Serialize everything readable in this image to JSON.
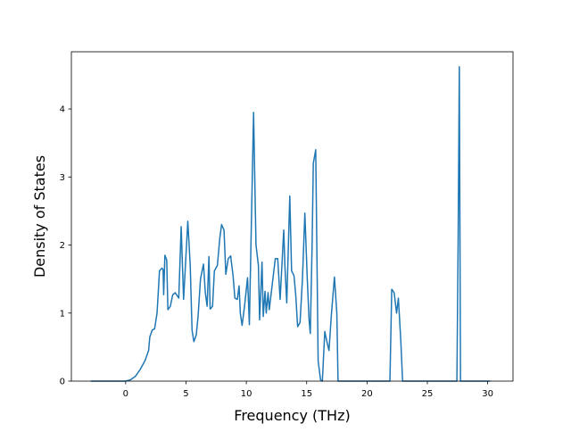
{
  "chart_data": {
    "type": "line",
    "xlabel": "Frequency (THz)",
    "ylabel": "Density of States",
    "color": "#1f77b4",
    "xlim": [
      -4.5,
      32.1
    ],
    "ylim": [
      0,
      4.84
    ],
    "xticks": [
      0,
      5,
      10,
      15,
      20,
      25,
      30
    ],
    "yticks": [
      0,
      1,
      2,
      3,
      4
    ],
    "x": [
      -2.9,
      0,
      0.4,
      0.8,
      1.2,
      1.6,
      1.9,
      2.0,
      2.2,
      2.4,
      2.6,
      2.7,
      2.8,
      3.0,
      3.1,
      3.15,
      3.25,
      3.4,
      3.5,
      3.7,
      3.9,
      4.1,
      4.4,
      4.6,
      4.8,
      5.15,
      5.35,
      5.5,
      5.65,
      5.85,
      6.0,
      6.2,
      6.45,
      6.6,
      6.75,
      6.9,
      7.0,
      7.2,
      7.35,
      7.6,
      7.8,
      7.95,
      8.15,
      8.3,
      8.5,
      8.7,
      8.9,
      9.05,
      9.25,
      9.4,
      9.5,
      9.65,
      9.85,
      10.1,
      10.25,
      10.45,
      10.6,
      10.8,
      11.0,
      11.1,
      11.3,
      11.4,
      11.55,
      11.65,
      11.8,
      11.9,
      12.2,
      12.4,
      12.6,
      12.8,
      13.1,
      13.2,
      13.35,
      13.6,
      13.75,
      13.95,
      14.1,
      14.25,
      14.45,
      14.65,
      14.85,
      15.05,
      15.2,
      15.3,
      15.45,
      15.55,
      15.75,
      15.95,
      16.15,
      16.3,
      16.5,
      16.65,
      16.85,
      17.05,
      17.3,
      17.5,
      17.6,
      21.9,
      22.05,
      22.25,
      22.45,
      22.6,
      22.8,
      22.95,
      27.45,
      27.55,
      27.65,
      27.75,
      30.2
    ],
    "values": [
      0,
      0,
      0.02,
      0.07,
      0.17,
      0.3,
      0.45,
      0.65,
      0.75,
      0.77,
      1.0,
      1.3,
      1.62,
      1.66,
      1.64,
      1.27,
      1.85,
      1.78,
      1.05,
      1.1,
      1.27,
      1.3,
      1.22,
      2.27,
      1.2,
      2.35,
      1.7,
      0.75,
      0.58,
      0.68,
      0.95,
      1.5,
      1.72,
      1.3,
      1.1,
      1.83,
      1.06,
      1.1,
      1.62,
      1.7,
      2.1,
      2.3,
      2.22,
      1.57,
      1.8,
      1.84,
      1.55,
      1.22,
      1.2,
      1.4,
      1.0,
      0.82,
      1.1,
      1.52,
      0.83,
      2.6,
      3.95,
      2.0,
      1.7,
      0.9,
      1.75,
      0.95,
      1.32,
      1.0,
      1.3,
      1.05,
      1.5,
      1.8,
      1.8,
      1.2,
      2.22,
      1.68,
      1.15,
      2.72,
      1.62,
      1.55,
      1.25,
      0.8,
      0.86,
      1.5,
      2.47,
      1.5,
      0.9,
      0.7,
      2.0,
      3.2,
      3.4,
      0.3,
      0.02,
      0,
      0.73,
      0.6,
      0.45,
      0.98,
      1.53,
      1.0,
      0,
      0,
      1.35,
      1.3,
      1.0,
      1.22,
      0.6,
      0,
      0,
      2.0,
      4.62,
      0,
      0
    ]
  }
}
